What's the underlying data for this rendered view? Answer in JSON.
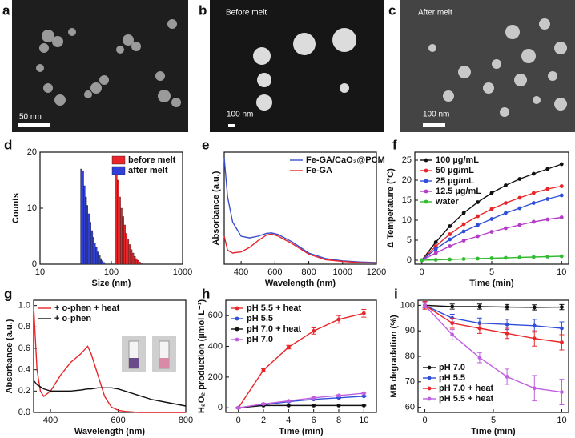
{
  "images": [
    {
      "panel": "a",
      "scale_bar": "50 nm"
    },
    {
      "panel": "b",
      "caption": "Before melt",
      "scale_bar": "100 nm"
    },
    {
      "panel": "c",
      "caption": "After melt",
      "scale_bar": "100 nm"
    }
  ],
  "chart_data": [
    {
      "type": "histogram",
      "panel": "d",
      "xlabel": "Size (nm)",
      "ylabel": "Counts",
      "xscale": "log",
      "xlim": [
        10,
        1000
      ],
      "xticks": [
        10,
        100,
        1000
      ],
      "ylim": [
        0,
        20
      ],
      "yticks": [
        0,
        10,
        20
      ],
      "legend": "upper right",
      "series": [
        {
          "name": "before melt",
          "color": "#e8262a",
          "bins": [
            115,
            121,
            128,
            135,
            142,
            150,
            158,
            167,
            176,
            186,
            196,
            207,
            218,
            230,
            243,
            256,
            270
          ],
          "values": [
            17,
            15,
            12,
            10,
            8.5,
            7,
            5.5,
            4.5,
            3.5,
            2.6,
            2,
            1.4,
            1,
            0.7,
            0.4,
            0.2
          ]
        },
        {
          "name": "after melt",
          "color": "#2f3fd8",
          "bins": [
            37,
            39,
            41,
            43,
            45,
            47,
            50,
            52,
            55,
            57,
            60,
            63,
            66,
            70,
            73,
            77,
            81
          ],
          "values": [
            17,
            16.7,
            14,
            12,
            10.5,
            9,
            7.5,
            6,
            4.8,
            3.8,
            3,
            2.2,
            1.6,
            1,
            0.6,
            0.3
          ]
        }
      ]
    },
    {
      "type": "line",
      "panel": "e",
      "xlabel": "Wavelength (nm)",
      "ylabel": "Absorbance (a.u.)",
      "xlim": [
        300,
        1200
      ],
      "xticks": [
        400,
        600,
        800,
        1000,
        1200
      ],
      "ylim": [
        0,
        2
      ],
      "legend": "upper right",
      "x": [
        300,
        320,
        350,
        400,
        450,
        500,
        550,
        580,
        620,
        700,
        800,
        900,
        1000,
        1100,
        1200
      ],
      "series": [
        {
          "name": "Fe-GA/CaO₂@PCM",
          "color": "#3a4fd0",
          "values": [
            1.9,
            1.2,
            0.75,
            0.5,
            0.47,
            0.5,
            0.55,
            0.56,
            0.53,
            0.4,
            0.2,
            0.1,
            0.06,
            0.04,
            0.03
          ]
        },
        {
          "name": "Fe-GA",
          "color": "#e8262a",
          "values": [
            0.5,
            0.25,
            0.2,
            0.22,
            0.3,
            0.42,
            0.52,
            0.54,
            0.5,
            0.37,
            0.18,
            0.08,
            0.05,
            0.03,
            0.02
          ]
        }
      ]
    },
    {
      "type": "line",
      "panel": "f",
      "xlabel": "Time (min)",
      "ylabel": "Δ Temperature (°C)",
      "markers": true,
      "xlim": [
        -0.5,
        10.5
      ],
      "xticks": [
        0,
        5,
        10
      ],
      "ylim": [
        -1,
        27
      ],
      "yticks": [
        0,
        5,
        10,
        15,
        20,
        25
      ],
      "legend": "upper left",
      "x": [
        0,
        1,
        2,
        3,
        4,
        5,
        6,
        7,
        8,
        9,
        10
      ],
      "series": [
        {
          "name": "100 µg/mL",
          "color": "#111111",
          "values": [
            0,
            4.5,
            8.5,
            11.8,
            14.5,
            16.8,
            18.7,
            20.3,
            21.6,
            22.8,
            24
          ]
        },
        {
          "name": "50 µg/mL",
          "color": "#e8262a",
          "values": [
            0,
            3.5,
            6.5,
            9,
            11,
            12.8,
            14.3,
            15.6,
            16.8,
            17.8,
            18.5
          ]
        },
        {
          "name": "25 µg/mL",
          "color": "#2f4fd8",
          "values": [
            0,
            2.8,
            5.2,
            7.2,
            8.8,
            10.3,
            11.8,
            13,
            14.3,
            15.3,
            16.2
          ]
        },
        {
          "name": "12.5 µg/mL",
          "color": "#b43cc8",
          "values": [
            0,
            1.8,
            3.5,
            4.9,
            6,
            7.1,
            8,
            8.8,
            9.6,
            10.2,
            10.7
          ]
        },
        {
          "name": "water",
          "color": "#33bb33",
          "values": [
            0,
            0.1,
            0.2,
            0.3,
            0.4,
            0.5,
            0.6,
            0.7,
            0.8,
            0.9,
            1
          ]
        }
      ]
    },
    {
      "type": "line",
      "panel": "g",
      "xlabel": "Wavelength (nm)",
      "ylabel": "Absorbance (a.u.)",
      "xlim": [
        350,
        800
      ],
      "xticks": [
        400,
        600,
        800
      ],
      "ylim": [
        0,
        1.05
      ],
      "yticks": [
        {
          "value": 0,
          "label": "0.0"
        },
        0.2,
        0.4,
        0.6,
        0.8,
        {
          "value": 1,
          "label": "1.0"
        }
      ],
      "legend": "upper left",
      "x": [
        350,
        360,
        370,
        380,
        400,
        430,
        460,
        490,
        510,
        520,
        540,
        560,
        580,
        600,
        620,
        660,
        700,
        750,
        800
      ],
      "series": [
        {
          "name": "+ o-phen + heat",
          "color": "#e8262a",
          "values": [
            1.0,
            0.4,
            0.2,
            0.15,
            0.2,
            0.35,
            0.47,
            0.55,
            0.62,
            0.55,
            0.35,
            0.15,
            0.05,
            0.02,
            0.01,
            0.0,
            0.0,
            0.0,
            0.0
          ]
        },
        {
          "name": "+ o-phen",
          "color": "#111111",
          "values": [
            0.3,
            0.26,
            0.24,
            0.22,
            0.2,
            0.2,
            0.2,
            0.21,
            0.22,
            0.22,
            0.23,
            0.23,
            0.23,
            0.22,
            0.2,
            0.16,
            0.12,
            0.09,
            0.06
          ]
        }
      ]
    },
    {
      "type": "line",
      "panel": "h",
      "xlabel": "Time (min)",
      "ylabel": "H₂O₂ production (µmol L⁻¹)",
      "markers": true,
      "xlim": [
        -1,
        11
      ],
      "xticks": [
        0,
        2,
        4,
        6,
        8,
        10
      ],
      "ylim": [
        -30,
        700
      ],
      "yticks": [
        0,
        200,
        400,
        600
      ],
      "legend": "upper left",
      "x": [
        0,
        2,
        4,
        6,
        8,
        10
      ],
      "series": [
        {
          "name": "pH 5.5 + heat",
          "color": "#e8262a",
          "values": [
            0,
            245,
            395,
            500,
            575,
            615
          ],
          "errors": [
            5,
            10,
            12,
            20,
            25,
            25
          ]
        },
        {
          "name": "pH 5.5",
          "color": "#2f4fd8",
          "values": [
            0,
            20,
            40,
            55,
            65,
            75
          ],
          "errors": [
            3,
            3,
            3,
            3,
            3,
            3
          ]
        },
        {
          "name": "pH 7.0 + heat",
          "color": "#111111",
          "values": [
            0,
            15,
            15,
            15,
            15,
            15
          ],
          "errors": [
            2,
            2,
            2,
            2,
            2,
            2
          ]
        },
        {
          "name": "pH 7.0",
          "color": "#c060e0",
          "values": [
            0,
            25,
            45,
            65,
            80,
            95
          ],
          "errors": [
            5,
            5,
            5,
            5,
            5,
            5
          ]
        }
      ]
    },
    {
      "type": "line",
      "panel": "i",
      "xlabel": "Time (min)",
      "ylabel": "MB degradation (%)",
      "markers": true,
      "xlim": [
        -0.5,
        10.5
      ],
      "xticks": [
        0,
        5,
        10
      ],
      "ylim": [
        58,
        102
      ],
      "yticks": [
        60,
        70,
        80,
        90,
        100
      ],
      "legend": "lower left",
      "x": [
        0,
        2,
        4,
        6,
        8,
        10
      ],
      "series": [
        {
          "name": "pH 7.0",
          "color": "#111111",
          "values": [
            100,
            99.5,
            99.5,
            99.3,
            99.2,
            99.3
          ],
          "errors": [
            1,
            1,
            1,
            1,
            1,
            1
          ]
        },
        {
          "name": "pH 5.5",
          "color": "#2f4fd8",
          "values": [
            100,
            95,
            93,
            92.5,
            92,
            91
          ],
          "errors": [
            1.5,
            1.5,
            2,
            2,
            2.5,
            2.5
          ]
        },
        {
          "name": "pH 7.0 + heat",
          "color": "#e8262a",
          "values": [
            100,
            93,
            91,
            89,
            87,
            85.5
          ],
          "errors": [
            1.5,
            2,
            2,
            2,
            3,
            3
          ]
        },
        {
          "name": "pH 5.5 + heat",
          "color": "#c060e0",
          "values": [
            100,
            88.5,
            79.5,
            72,
            67.5,
            66
          ],
          "errors": [
            1,
            2,
            2,
            3,
            5,
            5
          ]
        }
      ]
    }
  ]
}
